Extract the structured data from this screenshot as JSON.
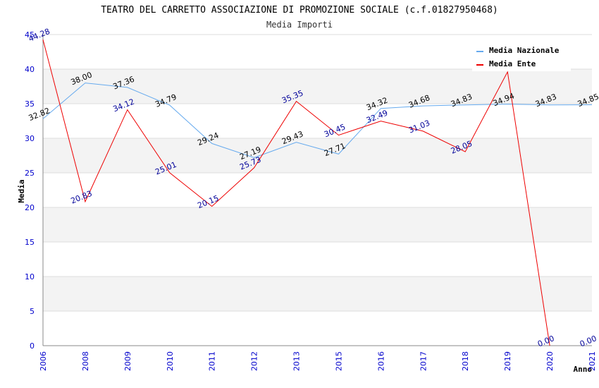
{
  "chart_data": {
    "type": "line",
    "title": "TEATRO DEL CARRETTO ASSOCIAZIONE DI PROMOZIONE SOCIALE (c.f.01827950468)",
    "subtitle": "Media Importi",
    "xlabel": "Anno",
    "ylabel": "Media",
    "ylim": [
      0,
      45
    ],
    "yticks": [
      "0",
      "5",
      "10",
      "15",
      "20",
      "25",
      "30",
      "35",
      "40",
      "45"
    ],
    "categories": [
      "2006",
      "2008",
      "2009",
      "2010",
      "2011",
      "2012",
      "2013",
      "2015",
      "2016",
      "2017",
      "2018",
      "2019",
      "2020",
      "2021"
    ],
    "series": [
      {
        "name": "Media Nazionale",
        "color": "#66aaee",
        "label_color": "#000000",
        "values": [
          32.82,
          38.0,
          37.36,
          34.79,
          29.24,
          27.19,
          29.43,
          27.71,
          34.32,
          34.68,
          34.83,
          34.94,
          34.83,
          34.85
        ],
        "labels": [
          "32.82",
          "38.00",
          "37.36",
          "34.79",
          "29.24",
          "27.19",
          "29.43",
          "27.71",
          "34.32",
          "34.68",
          "34.83",
          "34.94",
          "34.83",
          "34.85"
        ]
      },
      {
        "name": "Media Ente",
        "color": "#ee0000",
        "label_color": "#000099",
        "values": [
          44.28,
          20.83,
          34.12,
          25.01,
          20.15,
          25.73,
          35.35,
          30.45,
          32.49,
          31.03,
          28.05,
          39.6,
          0.0,
          0.0
        ],
        "labels": [
          "44.28",
          "20.83",
          "34.12",
          "25.01",
          "20.15",
          "25.73",
          "35.35",
          "30.45",
          "32.49",
          "31.03",
          "28.05",
          null,
          "0.00",
          "0.00"
        ],
        "line_points": 13
      }
    ],
    "legend": "top-right",
    "grid": true
  }
}
